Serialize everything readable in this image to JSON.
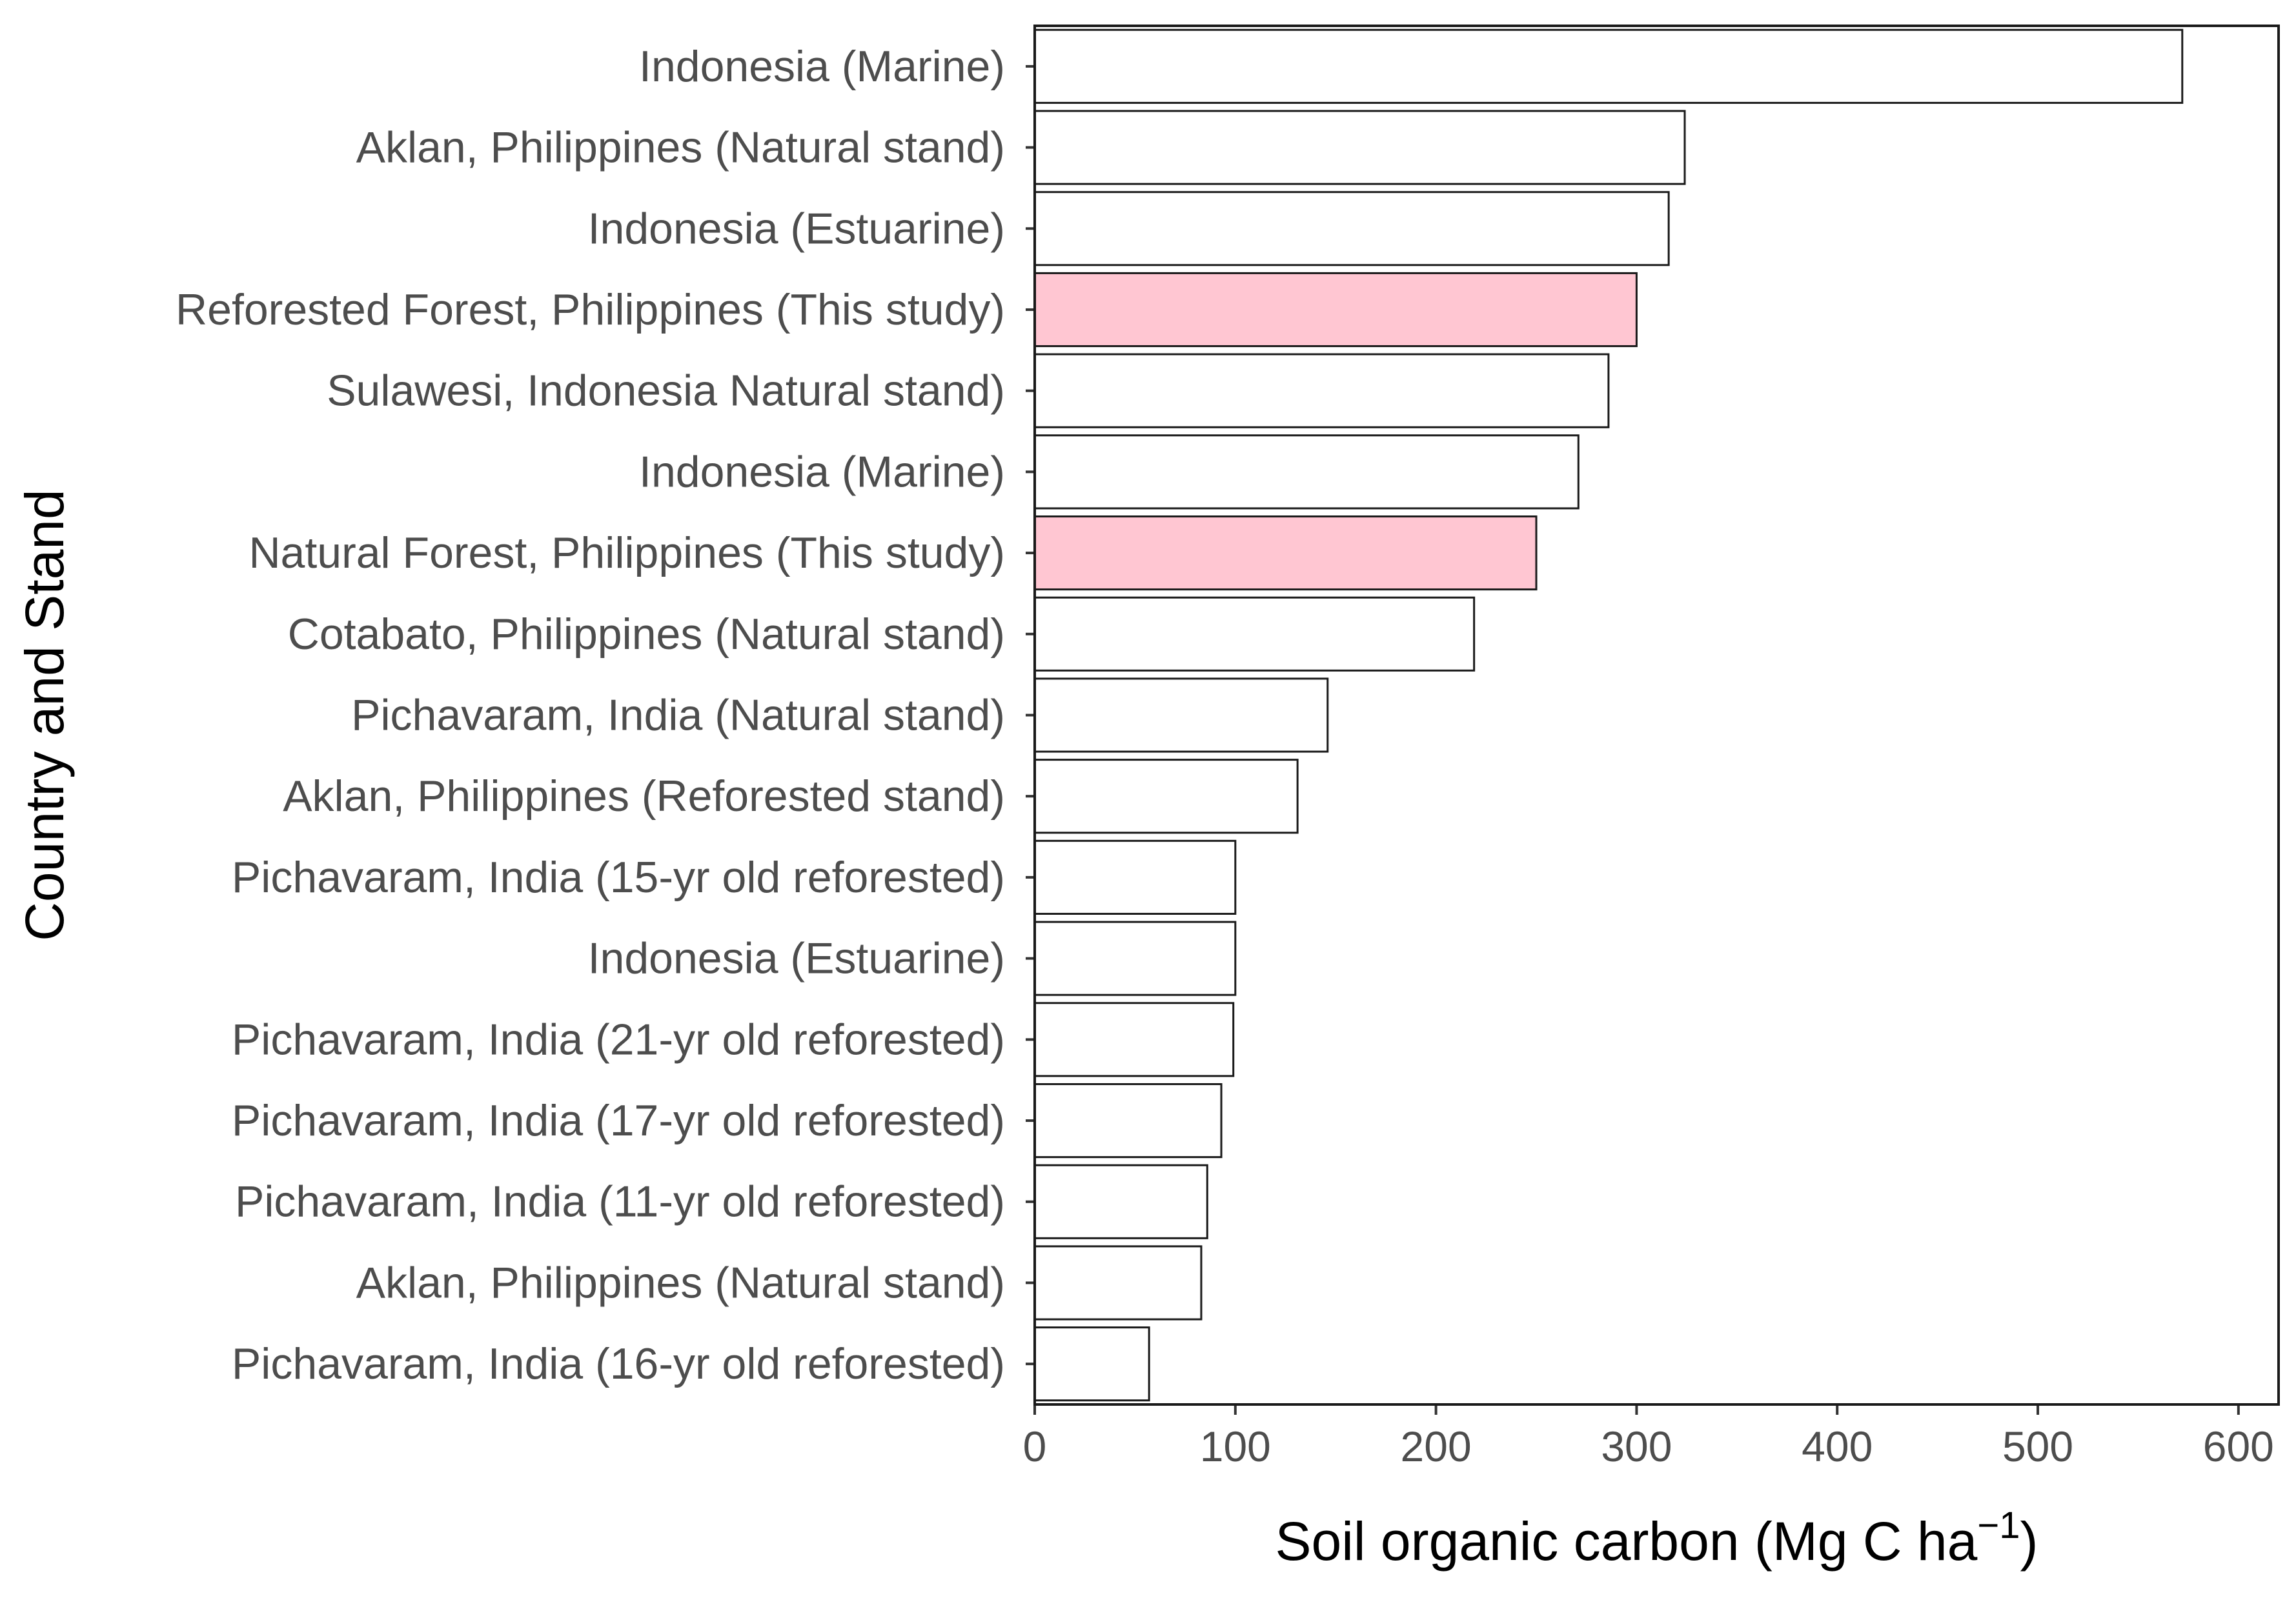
{
  "chart_data": {
    "type": "bar",
    "orientation": "horizontal",
    "xlabel": "Soil organic carbon (Mg C ha",
    "xlabel_superscript": "−1",
    "xlabel_close": ")",
    "ylabel": "Country and Stand",
    "xlim": [
      0,
      620
    ],
    "xticks": [
      0,
      100,
      200,
      300,
      400,
      500,
      600
    ],
    "grid": false,
    "colors": {
      "highlight": "#ffc6d2",
      "default": "#ffffff",
      "outline": "#1a1a1a"
    },
    "bars": [
      {
        "label": "Indonesia (Marine)",
        "value": 572,
        "highlight": false
      },
      {
        "label": "Aklan, Philippines (Natural stand)",
        "value": 324,
        "highlight": false
      },
      {
        "label": "Indonesia (Estuarine)",
        "value": 316,
        "highlight": false
      },
      {
        "label": "Reforested Forest, Philippines (This study)",
        "value": 300,
        "highlight": true
      },
      {
        "label": "Sulawesi, Indonesia Natural stand)",
        "value": 286,
        "highlight": false
      },
      {
        "label": "Indonesia (Marine)",
        "value": 271,
        "highlight": false
      },
      {
        "label": "Natural Forest, Philippines (This study)",
        "value": 250,
        "highlight": true
      },
      {
        "label": "Cotabato, Philippines (Natural stand) ",
        "value": 219,
        "highlight": false
      },
      {
        "label": "Pichavaram, India (Natural stand)",
        "value": 146,
        "highlight": false
      },
      {
        "label": "Aklan, Philippines (Reforested stand)",
        "value": 131,
        "highlight": false
      },
      {
        "label": "Pichavaram, India (15-yr old reforested)",
        "value": 100,
        "highlight": false
      },
      {
        "label": "Indonesia (Estuarine)",
        "value": 100,
        "highlight": false
      },
      {
        "label": "Pichavaram, India (21-yr old reforested)",
        "value": 99,
        "highlight": false
      },
      {
        "label": "Pichavaram, India (17-yr old reforested)",
        "value": 93,
        "highlight": false
      },
      {
        "label": "Pichavaram, India (11-yr old reforested)",
        "value": 86,
        "highlight": false
      },
      {
        "label": "Aklan, Philippines (Natural stand)",
        "value": 83,
        "highlight": false
      },
      {
        "label": "Pichavaram, India (16-yr old reforested)",
        "value": 57,
        "highlight": false
      }
    ]
  }
}
